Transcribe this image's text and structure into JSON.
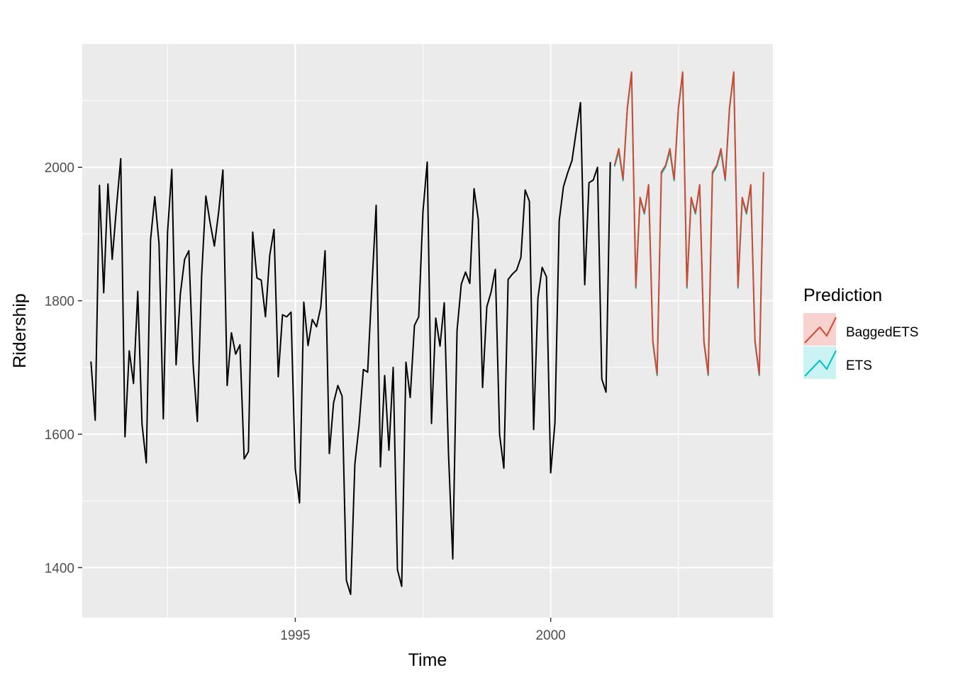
{
  "chart_data": {
    "type": "line",
    "xlabel": "Time",
    "ylabel": "Ridership",
    "xlim": [
      1990.83,
      2004.35
    ],
    "ylim": [
      1325,
      2185
    ],
    "x_ticks": [
      1995,
      2000
    ],
    "x_tick_labels": [
      "1995",
      "2000"
    ],
    "y_ticks": [
      1400,
      1600,
      1800,
      2000
    ],
    "y_tick_labels": [
      "1400",
      "1600",
      "1800",
      "2000"
    ],
    "grid": true,
    "background": "#ebebeb",
    "legend": {
      "title": "Prediction",
      "position": "right",
      "items": [
        {
          "label": "BaggedETS",
          "color": "#d04a32",
          "fill": "#f8d2cf"
        },
        {
          "label": "ETS",
          "color": "#00bfc4",
          "fill": "#ccf3f3"
        }
      ]
    },
    "observed": {
      "color": "#000000",
      "start": [
        1991,
        1
      ],
      "frequency": 12,
      "values": [
        1709,
        1621,
        1973,
        1812,
        1975,
        1862,
        1940,
        2013,
        1596,
        1725,
        1676,
        1814,
        1615,
        1557,
        1891,
        1956,
        1885,
        1623,
        1903,
        1997,
        1704,
        1810,
        1862,
        1875,
        1705,
        1619,
        1837,
        1957,
        1917,
        1882,
        1933,
        1996,
        1673,
        1752,
        1720,
        1734,
        1563,
        1574,
        1903,
        1834,
        1831,
        1776,
        1868,
        1907,
        1686,
        1779,
        1776,
        1783,
        1548,
        1497,
        1798,
        1733,
        1772,
        1761,
        1791,
        1875,
        1571,
        1647,
        1673,
        1657,
        1381,
        1360,
        1555,
        1614,
        1697,
        1693,
        1821,
        1943,
        1551,
        1688,
        1576,
        1700,
        1397,
        1372,
        1708,
        1655,
        1763,
        1776,
        1934,
        2008,
        1616,
        1774,
        1732,
        1797,
        1570,
        1413,
        1755,
        1825,
        1843,
        1826,
        1968,
        1922,
        1670,
        1791,
        1813,
        1847,
        1599,
        1549,
        1832,
        1840,
        1846,
        1865,
        1966,
        1949,
        1607,
        1804,
        1850,
        1836,
        1542,
        1617,
        1920,
        1971,
        1992,
        2010,
        2054,
        2097,
        1824,
        1977,
        1981,
        2000,
        1683,
        1663,
        2008
      ]
    },
    "series": [
      {
        "name": "BaggedETS",
        "color": "#d04a32",
        "start": [
          2001,
          4
        ],
        "frequency": 12,
        "values": [
          2003,
          2028,
          1982,
          2089,
          2143,
          1821,
          1955,
          1932,
          1974,
          1740,
          1690,
          1993,
          2003,
          2028,
          1982,
          2089,
          2143,
          1821,
          1955,
          1932,
          1974,
          1740,
          1690,
          1993,
          2003,
          2028,
          1982,
          2089,
          2143,
          1821,
          1955,
          1932,
          1974,
          1740,
          1690,
          1993
        ]
      },
      {
        "name": "ETS",
        "color": "#00bfc4",
        "start": [
          2001,
          4
        ],
        "frequency": 12,
        "values": [
          2001,
          2024,
          1980,
          2087,
          2141,
          1819,
          1952,
          1930,
          1972,
          1737,
          1688,
          1990,
          2001,
          2024,
          1980,
          2087,
          2141,
          1819,
          1952,
          1930,
          1972,
          1737,
          1688,
          1990,
          2001,
          2024,
          1980,
          2087,
          2141,
          1819,
          1952,
          1930,
          1972,
          1737,
          1688,
          1990
        ]
      }
    ]
  }
}
